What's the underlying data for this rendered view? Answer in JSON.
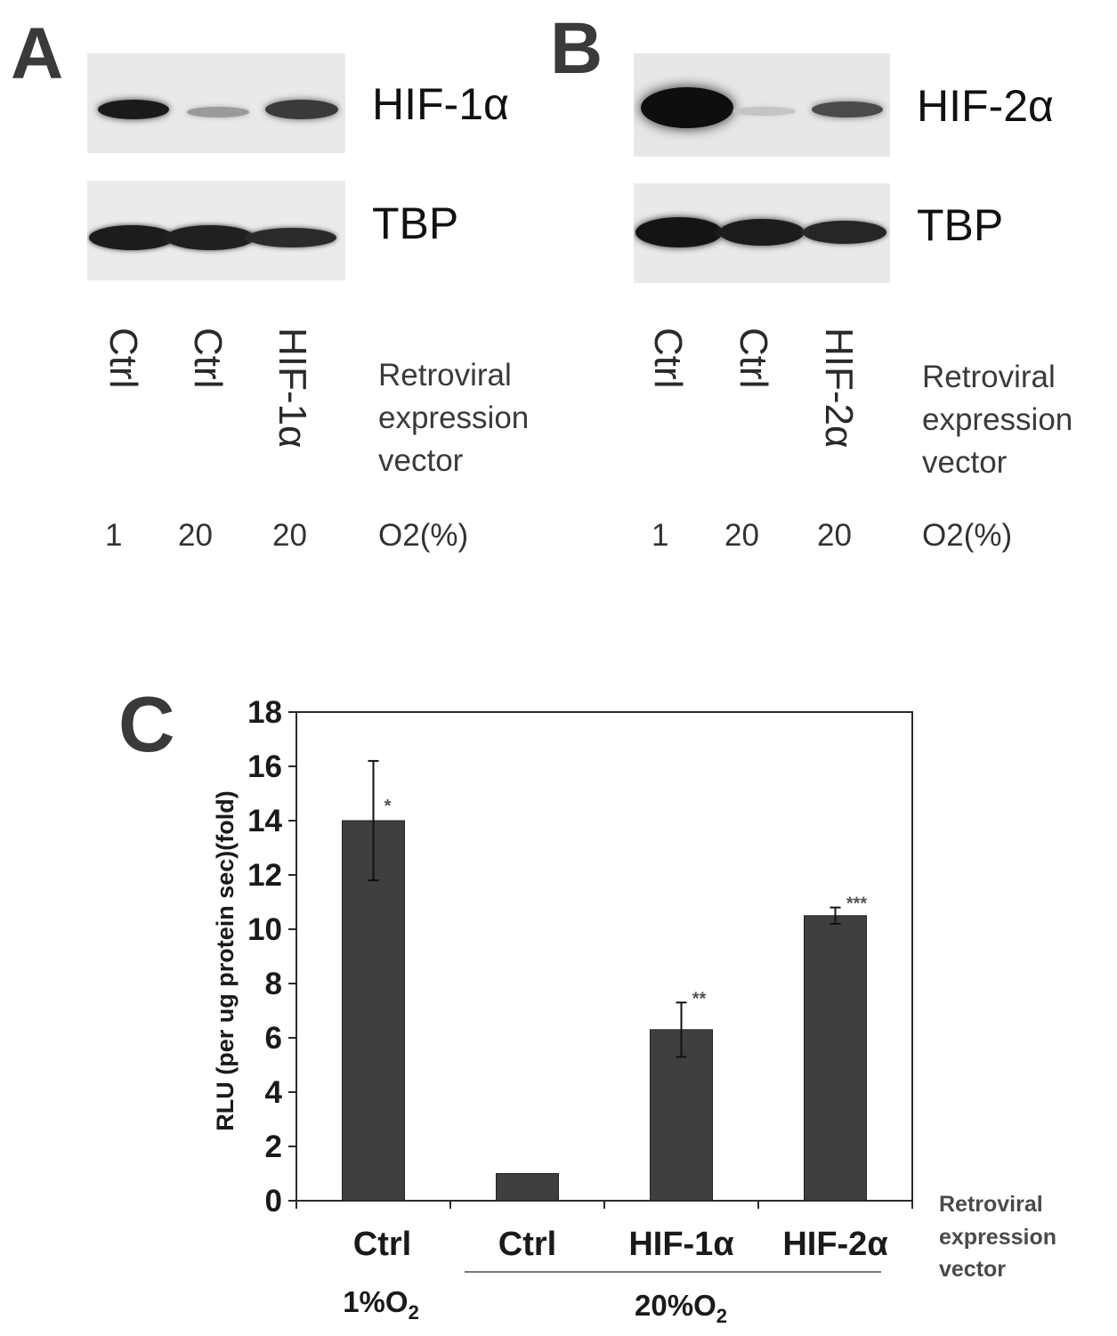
{
  "panels": {
    "a": {
      "letter": "A",
      "top_label": "HIF-1α",
      "bottom_label": "TBP",
      "lanes": [
        "Ctrl",
        "Ctrl",
        "HIF-1α"
      ],
      "o2": [
        "1",
        "20",
        "20"
      ],
      "legend": [
        "Retroviral",
        "expression",
        "vector"
      ],
      "o2_label": "O2(%)"
    },
    "b": {
      "letter": "B",
      "top_label": "HIF-2α",
      "bottom_label": "TBP",
      "lanes": [
        "Ctrl",
        "Ctrl",
        "HIF-2α"
      ],
      "o2": [
        "1",
        "20",
        "20"
      ],
      "legend": [
        "Retroviral",
        "expression",
        "vector"
      ],
      "o2_label": "O2(%)"
    },
    "c": {
      "letter": "C"
    }
  },
  "chart_data": {
    "type": "bar",
    "title": "",
    "ylabel": "RLU (per ug protein sec)(fold)",
    "ylim": [
      0,
      18
    ],
    "yticks": [
      0,
      2,
      4,
      6,
      8,
      10,
      12,
      14,
      16,
      18
    ],
    "categories": [
      "Ctrl",
      "Ctrl",
      "HIF-1α",
      "HIF-2α"
    ],
    "values": [
      14.0,
      1.0,
      6.3,
      10.5
    ],
    "error": [
      2.2,
      0.05,
      1.0,
      0.3
    ],
    "significance": [
      "*",
      "",
      "**",
      "***"
    ],
    "bar_color": "#3f3f3f",
    "group_labels": [
      {
        "base": "1%O",
        "sub": "2"
      },
      {
        "base": "20%O",
        "sub": "2"
      }
    ],
    "vector_label": [
      "Retroviral",
      "expression",
      "vector"
    ],
    "grid": false
  }
}
